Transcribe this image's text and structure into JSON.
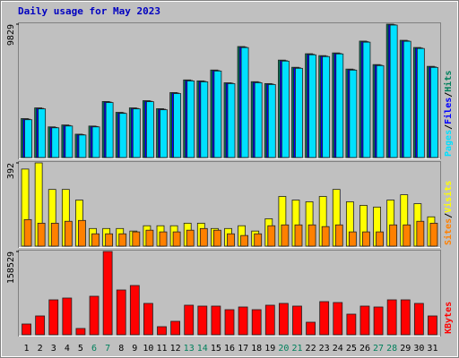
{
  "chart_data": [
    {
      "type": "bar",
      "title": "Daily usage for May 2023",
      "title_color": "#0000c0",
      "legend_separator": "/",
      "ylim": [
        0,
        9829
      ],
      "yticks": [
        9829
      ],
      "series": [
        {
          "name": "Hits",
          "color": "#00805c",
          "values": [
            2870,
            3660,
            2260,
            2400,
            1720,
            2320,
            4130,
            3330,
            3660,
            4190,
            3600,
            4790,
            5720,
            5650,
            6450,
            5510,
            8180,
            5590,
            5450,
            7180,
            6650,
            7650,
            7510,
            7710,
            6520,
            8580,
            6850,
            9829,
            8640,
            8110,
            6720
          ]
        },
        {
          "name": "Files",
          "color": "#0000ff",
          "values": [
            2830,
            3620,
            2220,
            2360,
            1690,
            2290,
            4090,
            3290,
            3620,
            4150,
            3560,
            4750,
            5680,
            5610,
            6410,
            5480,
            8140,
            5550,
            5410,
            7140,
            6610,
            7610,
            7470,
            7670,
            6480,
            8540,
            6810,
            9790,
            8600,
            8070,
            6680
          ]
        },
        {
          "name": "Pages",
          "color": "#00e0ff",
          "values": [
            2789,
            3586,
            2191,
            2324,
            1660,
            2258,
            4051,
            3254,
            3586,
            4117,
            3520,
            4715,
            5645,
            5578,
            6376,
            5446,
            8102,
            5512,
            5379,
            7106,
            6575,
            7571,
            7438,
            7637,
            6442,
            8501,
            6774,
            9763,
            8567,
            8036,
            6641
          ]
        }
      ]
    },
    {
      "type": "bar",
      "legend_separator": "/",
      "ylim": [
        0,
        392
      ],
      "yticks": [
        392
      ],
      "series": [
        {
          "name": "Visits",
          "color": "#ffff00",
          "values": [
            363,
            392,
            267,
            267,
            217,
            83,
            83,
            83,
            71,
            96,
            96,
            96,
            108,
            108,
            83,
            83,
            96,
            71,
            129,
            234,
            217,
            209,
            234,
            267,
            209,
            192,
            184,
            217,
            242,
            200,
            138
          ]
        },
        {
          "name": "Sites",
          "color": "#ff8000",
          "values": [
            125,
            108,
            108,
            117,
            121,
            58,
            58,
            58,
            67,
            75,
            67,
            67,
            75,
            83,
            75,
            58,
            50,
            58,
            96,
            100,
            100,
            100,
            92,
            100,
            67,
            67,
            67,
            100,
            100,
            117,
            108
          ]
        }
      ]
    },
    {
      "type": "bar",
      "ylim": [
        0,
        158529
      ],
      "yticks": [
        158529
      ],
      "series": [
        {
          "name": "KBytes",
          "color": "#ff0000",
          "values": [
            20460,
            35805,
            66495,
            69905,
            11935,
            73315,
            158529,
            85250,
            93775,
            59675,
            15345,
            25575,
            56265,
            54560,
            54560,
            47740,
            52855,
            47740,
            56265,
            59675,
            54560,
            23870,
            63085,
            61380,
            39215,
            54560,
            52855,
            66495,
            66495,
            59675,
            35805
          ]
        }
      ],
      "categories": [
        "1",
        "2",
        "3",
        "4",
        "5",
        "6",
        "7",
        "8",
        "9",
        "10",
        "11",
        "12",
        "13",
        "14",
        "15",
        "16",
        "17",
        "18",
        "19",
        "20",
        "21",
        "22",
        "23",
        "24",
        "25",
        "26",
        "27",
        "28",
        "29",
        "30",
        "31"
      ],
      "category_colors": [
        "#000000",
        "#000000",
        "#000000",
        "#000000",
        "#000000",
        "#00805c",
        "#00805c",
        "#000000",
        "#000000",
        "#000000",
        "#000000",
        "#000000",
        "#00805c",
        "#00805c",
        "#000000",
        "#000000",
        "#000000",
        "#000000",
        "#000000",
        "#00805c",
        "#00805c",
        "#000000",
        "#000000",
        "#000000",
        "#000000",
        "#000000",
        "#00805c",
        "#00805c",
        "#000000",
        "#000000",
        "#000000"
      ]
    }
  ]
}
